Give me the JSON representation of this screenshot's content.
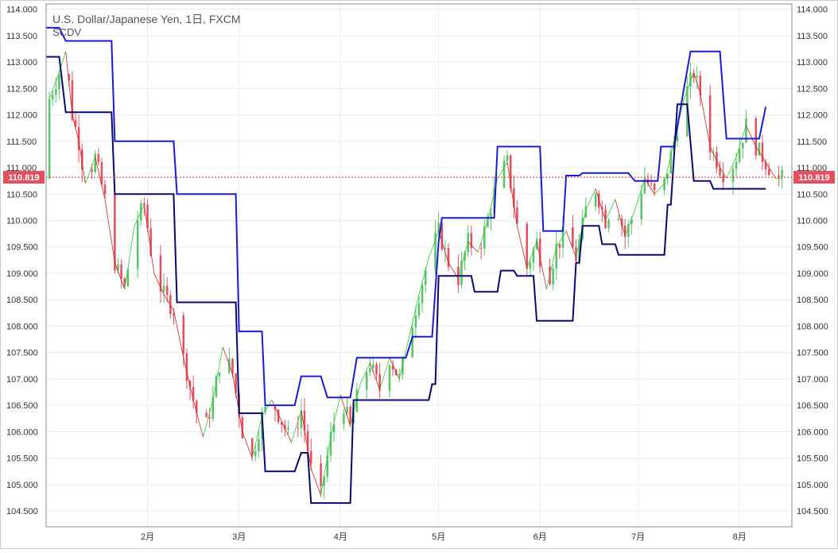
{
  "header": {
    "title": "U.S. Dollar/Japanese Yen, 1日, FXCM",
    "indicator": "SCDV"
  },
  "colors": {
    "up": "#5ac26b",
    "down": "#e25060",
    "channel_outer": "#1c1ccf",
    "channel_inner": "#0a0a6e",
    "zigzag_up": "#33cc33",
    "zigzag_down": "#cc2222",
    "grid": "#e9edf1",
    "price_line": "#cc3333",
    "price_label_bg": "#e25060"
  },
  "chart_data": {
    "type": "candlestick",
    "y_ticks": [
      "114.000",
      "113.500",
      "113.000",
      "112.500",
      "112.000",
      "111.500",
      "111.000",
      "110.500",
      "110.000",
      "109.500",
      "109.000",
      "108.500",
      "108.000",
      "107.500",
      "107.000",
      "106.500",
      "106.000",
      "105.500",
      "105.000",
      "104.500"
    ],
    "ylim": [
      104.2,
      114.1
    ],
    "x_ticks": [
      {
        "label": "2月",
        "day": 31
      },
      {
        "label": "3月",
        "day": 59
      },
      {
        "label": "4月",
        "day": 90
      },
      {
        "label": "5月",
        "day": 120
      },
      {
        "label": "6月",
        "day": 151
      },
      {
        "label": "7月",
        "day": 181
      },
      {
        "label": "8月",
        "day": 212
      }
    ],
    "xlim": [
      0,
      228
    ],
    "current_price": "110.819",
    "close_series": [
      {
        "day": 1,
        "close": 112.3
      },
      {
        "day": 4,
        "close": 112.8
      },
      {
        "day": 6,
        "close": 113.2
      },
      {
        "day": 8,
        "close": 112.0
      },
      {
        "day": 10,
        "close": 111.5
      },
      {
        "day": 12,
        "close": 110.7
      },
      {
        "day": 15,
        "close": 111.2
      },
      {
        "day": 18,
        "close": 110.4
      },
      {
        "day": 21,
        "close": 109.2
      },
      {
        "day": 24,
        "close": 108.7
      },
      {
        "day": 27,
        "close": 109.9
      },
      {
        "day": 30,
        "close": 110.3
      },
      {
        "day": 33,
        "close": 109.0
      },
      {
        "day": 36,
        "close": 108.6
      },
      {
        "day": 39,
        "close": 108.3
      },
      {
        "day": 42,
        "close": 107.4
      },
      {
        "day": 45,
        "close": 106.6
      },
      {
        "day": 48,
        "close": 105.9
      },
      {
        "day": 51,
        "close": 106.6
      },
      {
        "day": 54,
        "close": 107.6
      },
      {
        "day": 57,
        "close": 107.1
      },
      {
        "day": 60,
        "close": 106.0
      },
      {
        "day": 63,
        "close": 105.5
      },
      {
        "day": 66,
        "close": 106.3
      },
      {
        "day": 69,
        "close": 106.6
      },
      {
        "day": 72,
        "close": 106.2
      },
      {
        "day": 75,
        "close": 105.8
      },
      {
        "day": 78,
        "close": 106.4
      },
      {
        "day": 81,
        "close": 105.3
      },
      {
        "day": 84,
        "close": 104.8
      },
      {
        "day": 87,
        "close": 105.9
      },
      {
        "day": 90,
        "close": 106.7
      },
      {
        "day": 93,
        "close": 106.1
      },
      {
        "day": 96,
        "close": 106.9
      },
      {
        "day": 99,
        "close": 107.3
      },
      {
        "day": 102,
        "close": 106.8
      },
      {
        "day": 105,
        "close": 107.4
      },
      {
        "day": 108,
        "close": 107.0
      },
      {
        "day": 111,
        "close": 107.8
      },
      {
        "day": 114,
        "close": 108.6
      },
      {
        "day": 117,
        "close": 109.3
      },
      {
        "day": 120,
        "close": 109.8
      },
      {
        "day": 123,
        "close": 109.2
      },
      {
        "day": 126,
        "close": 108.9
      },
      {
        "day": 129,
        "close": 109.6
      },
      {
        "day": 132,
        "close": 109.4
      },
      {
        "day": 135,
        "close": 110.0
      },
      {
        "day": 138,
        "close": 110.8
      },
      {
        "day": 141,
        "close": 111.1
      },
      {
        "day": 144,
        "close": 109.9
      },
      {
        "day": 147,
        "close": 109.1
      },
      {
        "day": 150,
        "close": 109.6
      },
      {
        "day": 153,
        "close": 108.7
      },
      {
        "day": 156,
        "close": 109.5
      },
      {
        "day": 159,
        "close": 109.8
      },
      {
        "day": 162,
        "close": 109.3
      },
      {
        "day": 165,
        "close": 110.2
      },
      {
        "day": 168,
        "close": 110.6
      },
      {
        "day": 171,
        "close": 110.0
      },
      {
        "day": 174,
        "close": 110.4
      },
      {
        "day": 177,
        "close": 109.7
      },
      {
        "day": 180,
        "close": 110.2
      },
      {
        "day": 183,
        "close": 110.8
      },
      {
        "day": 186,
        "close": 110.5
      },
      {
        "day": 189,
        "close": 110.7
      },
      {
        "day": 192,
        "close": 111.5
      },
      {
        "day": 195,
        "close": 112.3
      },
      {
        "day": 198,
        "close": 112.8
      },
      {
        "day": 200,
        "close": 112.4
      },
      {
        "day": 203,
        "close": 111.4
      },
      {
        "day": 206,
        "close": 111.0
      },
      {
        "day": 208,
        "close": 110.8
      },
      {
        "day": 211,
        "close": 111.2
      },
      {
        "day": 214,
        "close": 111.8
      },
      {
        "day": 217,
        "close": 111.4
      },
      {
        "day": 220,
        "close": 111.1
      },
      {
        "day": 223,
        "close": 110.8
      },
      {
        "day": 225,
        "close": 110.8
      }
    ],
    "series": [
      {
        "name": "upper",
        "points": [
          [
            0,
            113.65
          ],
          [
            4,
            113.65
          ],
          [
            6,
            113.4
          ],
          [
            20,
            113.4
          ],
          [
            21,
            111.5
          ],
          [
            39,
            111.5
          ],
          [
            40,
            110.5
          ],
          [
            58,
            110.5
          ],
          [
            59,
            107.9
          ],
          [
            66,
            107.9
          ],
          [
            67,
            106.5
          ],
          [
            76,
            106.5
          ],
          [
            78,
            107.05
          ],
          [
            84,
            107.05
          ],
          [
            86,
            106.65
          ],
          [
            93,
            106.65
          ],
          [
            95,
            107.4
          ],
          [
            110,
            107.4
          ],
          [
            112,
            107.8
          ],
          [
            118,
            107.8
          ],
          [
            120,
            109.6
          ],
          [
            121,
            110.05
          ],
          [
            137,
            110.05
          ],
          [
            138,
            111.4
          ],
          [
            151,
            111.4
          ],
          [
            152,
            109.8
          ],
          [
            158,
            109.8
          ],
          [
            159,
            110.85
          ],
          [
            163,
            110.85
          ],
          [
            164,
            110.9
          ],
          [
            178,
            110.9
          ],
          [
            180,
            110.75
          ],
          [
            187,
            110.75
          ],
          [
            188,
            111.4
          ],
          [
            192,
            111.4
          ],
          [
            195,
            112.5
          ],
          [
            197,
            113.2
          ],
          [
            206,
            113.2
          ],
          [
            208,
            111.55
          ],
          [
            218,
            111.55
          ],
          [
            220,
            112.15
          ]
        ]
      },
      {
        "name": "lower",
        "points": [
          [
            0,
            113.1
          ],
          [
            4,
            113.1
          ],
          [
            6,
            112.05
          ],
          [
            20,
            112.05
          ],
          [
            21,
            110.5
          ],
          [
            39,
            110.5
          ],
          [
            40,
            108.45
          ],
          [
            58,
            108.45
          ],
          [
            59,
            106.35
          ],
          [
            66,
            106.35
          ],
          [
            67,
            105.25
          ],
          [
            76,
            105.25
          ],
          [
            78,
            105.6
          ],
          [
            80,
            105.6
          ],
          [
            81,
            104.65
          ],
          [
            93,
            104.65
          ],
          [
            94,
            106.6
          ],
          [
            117,
            106.6
          ],
          [
            118,
            106.9
          ],
          [
            119,
            106.9
          ],
          [
            120,
            108.95
          ],
          [
            121,
            108.95
          ],
          [
            130,
            108.95
          ],
          [
            131,
            108.65
          ],
          [
            138,
            108.65
          ],
          [
            139,
            109.05
          ],
          [
            143,
            109.05
          ],
          [
            144,
            108.95
          ],
          [
            149,
            108.95
          ],
          [
            150,
            108.1
          ],
          [
            161,
            108.1
          ],
          [
            162,
            109.2
          ],
          [
            163,
            109.2
          ],
          [
            164,
            109.9
          ],
          [
            169,
            109.9
          ],
          [
            170,
            109.55
          ],
          [
            174,
            109.55
          ],
          [
            175,
            109.35
          ],
          [
            189,
            109.35
          ],
          [
            190,
            110.3
          ],
          [
            191,
            110.3
          ],
          [
            193,
            112.2
          ],
          [
            196,
            112.2
          ],
          [
            198,
            110.75
          ],
          [
            203,
            110.75
          ],
          [
            204,
            110.6
          ],
          [
            220,
            110.6
          ]
        ]
      }
    ]
  }
}
